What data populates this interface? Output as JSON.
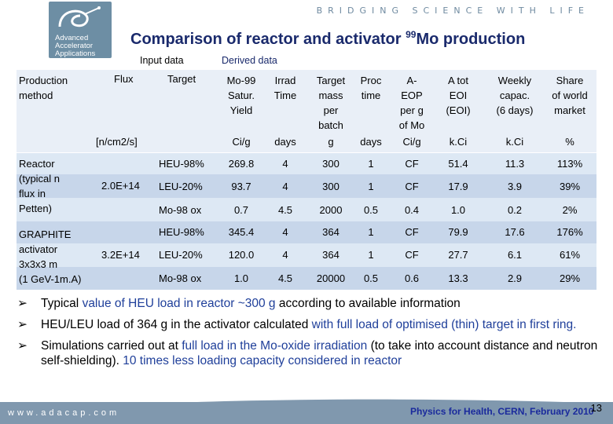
{
  "header": {
    "tagline": "BRIDGING SCIENCE WITH LIFE",
    "logo_lines": [
      "Advanced",
      "Accelerator",
      "Applications"
    ],
    "title": "Comparison of reactor and activator ",
    "title_sup": "99",
    "title_end": "Mo production"
  },
  "subheaders": {
    "input": "Input data",
    "derived": "Derived data"
  },
  "columns": {
    "production": [
      "Production",
      "method"
    ],
    "flux": "Flux",
    "target": "Target",
    "mo99": [
      "Mo-99",
      "Satur.",
      "Yield"
    ],
    "irrad": [
      "Irrad",
      "Time"
    ],
    "tmass": [
      "Target",
      "mass",
      "per",
      "batch"
    ],
    "proc": [
      "Proc",
      "time"
    ],
    "aeop": [
      "A-",
      "EOP",
      "per g",
      "of Mo"
    ],
    "atot": [
      "A tot",
      "EOI",
      "(EOI)"
    ],
    "weekly": [
      "Weekly",
      "capac.",
      "(6 days)"
    ],
    "share": [
      "Share",
      "of world",
      "market"
    ]
  },
  "units": {
    "flux": "[n/cm2/s]",
    "mo99": "Ci/g",
    "irrad": "days",
    "tmass": "g",
    "proc": "days",
    "aeop": "Ci/g",
    "atot": "k.Ci",
    "weekly": "k.Ci",
    "share": "%"
  },
  "groups": [
    {
      "method": [
        "Reactor",
        "(typical n",
        "flux in",
        "Petten)"
      ],
      "flux": "2.0E+14",
      "rows": [
        {
          "target": "HEU-98%",
          "mo99": "269.8",
          "irrad": "4",
          "tmass": "300",
          "proc": "1",
          "aeop": "CF",
          "atot": "51.4",
          "weekly": "11.3",
          "share": "113%"
        },
        {
          "target": "LEU-20%",
          "mo99": "93.7",
          "irrad": "4",
          "tmass": "300",
          "proc": "1",
          "aeop": "CF",
          "atot": "17.9",
          "weekly": "3.9",
          "share": "39%"
        },
        {
          "target": "Mo-98 ox",
          "mo99": "0.7",
          "irrad": "4.5",
          "tmass": "2000",
          "proc": "0.5",
          "aeop": "0.4",
          "atot": "1.0",
          "weekly": "0.2",
          "share": "2%"
        }
      ]
    },
    {
      "method": [
        "GRAPHITE",
        "activator",
        "3x3x3 m",
        "(1 GeV-1m.A)"
      ],
      "flux": "3.2E+14",
      "rows": [
        {
          "target": "HEU-98%",
          "mo99": "345.4",
          "irrad": "4",
          "tmass": "364",
          "proc": "1",
          "aeop": "CF",
          "atot": "79.9",
          "weekly": "17.6",
          "share": "176%"
        },
        {
          "target": "LEU-20%",
          "mo99": "120.0",
          "irrad": "4",
          "tmass": "364",
          "proc": "1",
          "aeop": "CF",
          "atot": "27.7",
          "weekly": "6.1",
          "share": "61%"
        },
        {
          "target": "Mo-98 ox",
          "mo99": "1.0",
          "irrad": "4.5",
          "tmass": "20000",
          "proc": "0.5",
          "aeop": "0.6",
          "atot": "13.3",
          "weekly": "2.9",
          "share": "29%"
        }
      ]
    }
  ],
  "bullets": [
    [
      {
        "t": "Typical ",
        "c": ""
      },
      {
        "t": "value of HEU load in reactor ~300 g ",
        "c": "blue"
      },
      {
        "t": "according to available information",
        "c": ""
      }
    ],
    [
      {
        "t": "HEU/LEU load of 364 g in the activator calculated ",
        "c": ""
      },
      {
        "t": "with full load of optimised (thin) target in first ring.",
        "c": "blue"
      }
    ],
    [
      {
        "t": "Simulations carried out at ",
        "c": ""
      },
      {
        "t": "full load in the Mo-oxide irradiation ",
        "c": "blue"
      },
      {
        "t": "(to take into account distance and neutron self-shielding). ",
        "c": ""
      },
      {
        "t": "10 times less loading capacity considered in reactor",
        "c": "blue"
      }
    ]
  ],
  "footer": {
    "site": "www.adacap.com",
    "event": "Physics for Health, CERN, February 2010",
    "page": "13"
  },
  "colors": {
    "title": "#1a2a6c",
    "bar": "#8098ae",
    "row_a": "#dde8f4",
    "row_b": "#c7d6ea",
    "header_bg": "#e9eff7"
  }
}
